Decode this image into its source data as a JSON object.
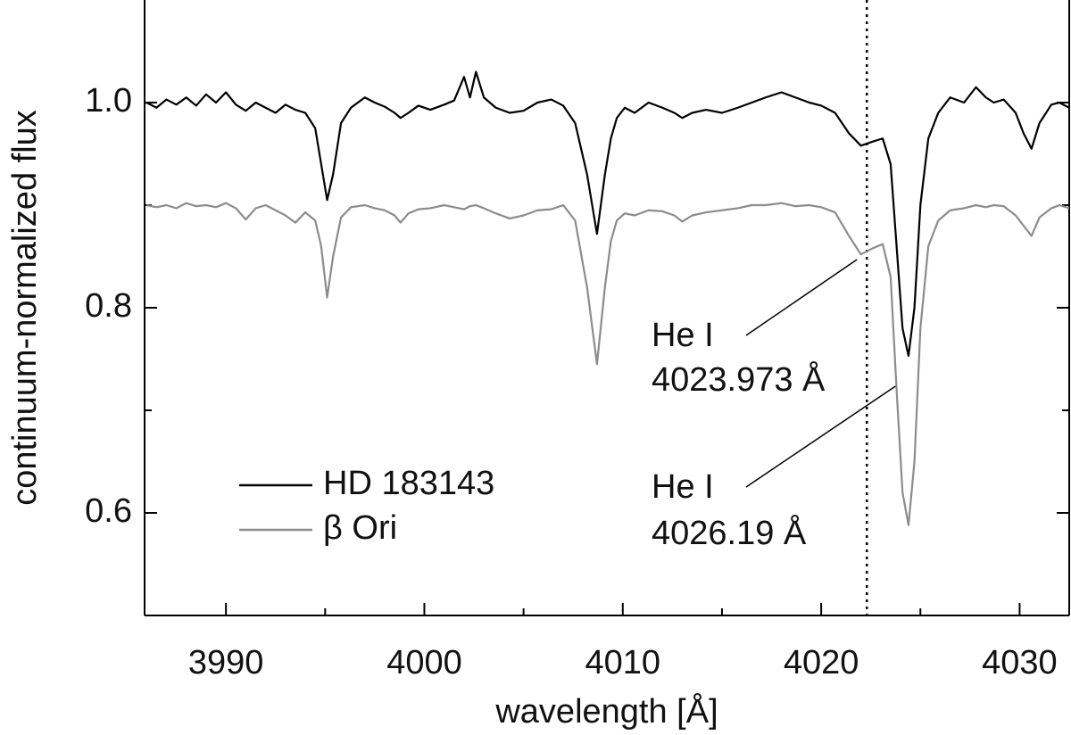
{
  "chart_data": {
    "type": "line",
    "xlabel": "wavelength [Å]",
    "ylabel": "continuum-normalized flux",
    "xlim": [
      3985.9,
      4032.5
    ],
    "ylim": [
      0.5,
      1.1
    ],
    "xticks": [
      3990,
      4000,
      4010,
      4020,
      4030
    ],
    "xminor_ticks": [
      3995,
      4005,
      4015,
      4025
    ],
    "yticks": [
      0.6,
      0.8,
      {
        "value": 1,
        "label": "1.0"
      }
    ],
    "yminor_ticks": [
      0.7,
      0.9
    ],
    "legend": "center left",
    "vlines": [
      {
        "x": 4022.3,
        "style": "dotted",
        "color": "#000000"
      }
    ],
    "annotations": [
      {
        "text": [
          "He I",
          "4023.973 Å"
        ],
        "xy": [
          4021.8,
          0.847
        ]
      },
      {
        "text": [
          "He I",
          "4026.19 Å"
        ],
        "xy": [
          4023.74,
          0.7235
        ]
      }
    ],
    "x": [
      3986,
      3986.5,
      3987,
      3987.5,
      3988,
      3988.5,
      3989,
      3989.5,
      3990,
      3990.5,
      3991,
      3991.5,
      3992,
      3992.5,
      3993,
      3993.5,
      3994,
      3994.5,
      3994.8,
      3995.1,
      3995.4,
      3995.8,
      3996.3,
      3997,
      3997.5,
      3998,
      3998.5,
      3998.8,
      3999.2,
      3999.7,
      4000.3,
      4001,
      4001.5,
      4002,
      4002.3,
      4002.6,
      4003,
      4003.6,
      4004.3,
      4005,
      4005.7,
      4006.4,
      4007,
      4007.6,
      4008.2,
      4008.7,
      4009.1,
      4009.4,
      4009.7,
      4010.1,
      4010.6,
      4011.3,
      4012,
      4012.6,
      4013,
      4013.5,
      4014.2,
      4015,
      4015.8,
      4016.5,
      4017.2,
      4018,
      4018.7,
      4019.4,
      4020,
      4020.7,
      4021.4,
      4022,
      4022.6,
      4023.1,
      4023.5,
      4023.8,
      4024.1,
      4024.4,
      4024.7,
      4025,
      4025.4,
      4025.9,
      4026.5,
      4027.2,
      4027.8,
      4028.3,
      4028.7,
      4029.2,
      4029.8,
      4030.2,
      4030.6,
      4031,
      4031.6,
      4032,
      4032.5
    ],
    "series": [
      {
        "name": "HD 183143",
        "color": "#000000",
        "values": [
          1.0,
          0.995,
          1.003,
          0.998,
          1.005,
          0.997,
          1.008,
          1.0,
          1.01,
          0.998,
          0.992,
          1.0,
          0.995,
          0.99,
          0.998,
          0.993,
          0.99,
          0.975,
          0.94,
          0.905,
          0.93,
          0.98,
          0.995,
          1.005,
          1.0,
          0.996,
          0.99,
          0.985,
          0.99,
          0.997,
          0.993,
          0.998,
          1.002,
          1.025,
          1.005,
          1.03,
          1.005,
          0.995,
          0.99,
          0.992,
          1.0,
          1.003,
          0.997,
          0.98,
          0.93,
          0.872,
          0.93,
          0.965,
          0.985,
          0.995,
          0.99,
          1.0,
          0.995,
          0.99,
          0.985,
          0.99,
          0.993,
          0.99,
          0.995,
          1.0,
          1.005,
          1.01,
          1.005,
          1.0,
          0.997,
          0.99,
          0.97,
          0.958,
          0.962,
          0.965,
          0.94,
          0.86,
          0.78,
          0.753,
          0.8,
          0.9,
          0.965,
          0.99,
          1.005,
          1.0,
          1.015,
          1.005,
          1.0,
          1.003,
          0.99,
          0.97,
          0.955,
          0.98,
          0.998,
          1.0,
          0.995
        ]
      },
      {
        "name": "β Ori",
        "color": "#8c8c8c",
        "values": [
          0.9,
          0.898,
          0.9,
          0.897,
          0.902,
          0.899,
          0.9,
          0.898,
          0.902,
          0.897,
          0.886,
          0.897,
          0.9,
          0.895,
          0.89,
          0.883,
          0.893,
          0.885,
          0.86,
          0.81,
          0.85,
          0.888,
          0.898,
          0.9,
          0.897,
          0.895,
          0.89,
          0.883,
          0.892,
          0.896,
          0.897,
          0.9,
          0.898,
          0.896,
          0.899,
          0.9,
          0.897,
          0.892,
          0.887,
          0.89,
          0.895,
          0.896,
          0.9,
          0.885,
          0.82,
          0.745,
          0.82,
          0.865,
          0.885,
          0.892,
          0.89,
          0.895,
          0.894,
          0.89,
          0.884,
          0.89,
          0.893,
          0.895,
          0.897,
          0.9,
          0.9,
          0.902,
          0.899,
          0.9,
          0.898,
          0.893,
          0.87,
          0.852,
          0.858,
          0.862,
          0.83,
          0.72,
          0.62,
          0.588,
          0.65,
          0.78,
          0.86,
          0.885,
          0.895,
          0.897,
          0.9,
          0.898,
          0.9,
          0.899,
          0.89,
          0.88,
          0.87,
          0.888,
          0.897,
          0.9,
          0.897
        ]
      }
    ]
  }
}
